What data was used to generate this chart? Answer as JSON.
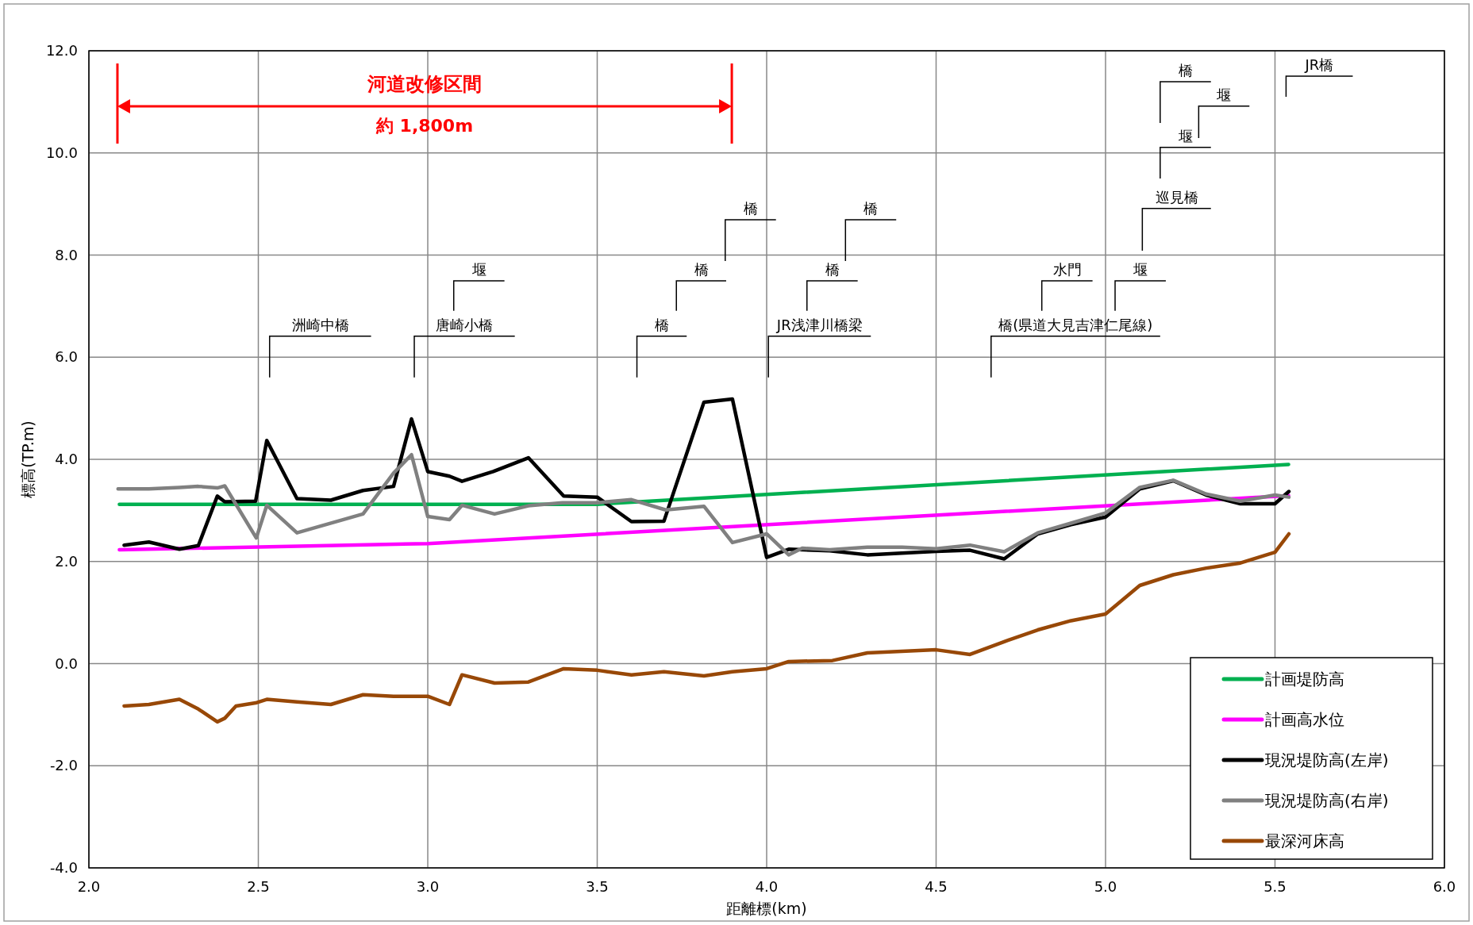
{
  "chart_data": {
    "type": "line",
    "xlabel": "距離標(km)",
    "ylabel": "標高(TP.m)",
    "xlim": [
      2.0,
      6.0
    ],
    "ylim": [
      -4.0,
      12.0
    ],
    "xticks": [
      {
        "value": 2.0,
        "label": "2.0"
      },
      {
        "value": 2.5,
        "label": "2.5"
      },
      {
        "value": 3.0,
        "label": "3.0"
      },
      {
        "value": 3.5,
        "label": "3.5"
      },
      {
        "value": 4.0,
        "label": "4.0"
      },
      {
        "value": 4.5,
        "label": "4.5"
      },
      {
        "value": 5.0,
        "label": "5.0"
      },
      {
        "value": 5.5,
        "label": "5.5"
      },
      {
        "value": 6.0,
        "label": "6.0"
      }
    ],
    "yticks": [
      {
        "value": -4.0,
        "label": "-4.0"
      },
      {
        "value": -2.0,
        "label": "-2.0"
      },
      {
        "value": 0.0,
        "label": "0.0"
      },
      {
        "value": 2.0,
        "label": "2.0"
      },
      {
        "value": 4.0,
        "label": "4.0"
      },
      {
        "value": 6.0,
        "label": "6.0"
      },
      {
        "value": 8.0,
        "label": "8.0"
      },
      {
        "value": 10.0,
        "label": "10.0"
      },
      {
        "value": 12.0,
        "label": "12.0"
      }
    ],
    "grid": true,
    "legend": "bottom right",
    "marker": "none",
    "line_style": "solid",
    "series": [
      {
        "name": "計画堤防高",
        "color": "#00b050",
        "x": [
          2.09,
          3.5,
          5.54
        ],
        "values": [
          3.12,
          3.12,
          3.9
        ]
      },
      {
        "name": "計画高水位",
        "color": "#ff00ff",
        "x": [
          2.09,
          3.0,
          5.54
        ],
        "values": [
          2.23,
          2.35,
          3.29
        ]
      },
      {
        "name": "現況堤防高(左岸)",
        "color": "#000000",
        "x": [
          2.104,
          2.177,
          2.267,
          2.323,
          2.379,
          2.401,
          2.492,
          2.525,
          2.614,
          2.714,
          2.809,
          2.899,
          2.952,
          3.0,
          3.064,
          3.101,
          3.193,
          3.297,
          3.401,
          3.5,
          3.601,
          3.697,
          3.815,
          3.899,
          4.0,
          4.065,
          4.186,
          4.297,
          4.5,
          4.6,
          4.701,
          4.8,
          4.898,
          5.0,
          5.101,
          5.2,
          5.297,
          5.398,
          5.5,
          5.541
        ],
        "values": [
          2.32,
          2.38,
          2.24,
          2.31,
          3.28,
          3.17,
          3.18,
          4.37,
          3.23,
          3.2,
          3.39,
          3.47,
          4.79,
          3.76,
          3.67,
          3.57,
          3.76,
          4.03,
          3.28,
          3.26,
          2.78,
          2.79,
          5.12,
          5.18,
          2.08,
          2.24,
          2.21,
          2.13,
          2.2,
          2.22,
          2.05,
          2.54,
          2.72,
          2.87,
          3.42,
          3.58,
          3.3,
          3.13,
          3.13,
          3.37
        ]
      },
      {
        "name": "現況堤防高(右岸)",
        "color": "#808080",
        "x": [
          2.086,
          2.177,
          2.267,
          2.323,
          2.379,
          2.401,
          2.494,
          2.525,
          2.614,
          2.809,
          2.899,
          2.952,
          3.0,
          3.064,
          3.101,
          3.197,
          3.297,
          3.397,
          3.5,
          3.601,
          3.702,
          3.815,
          3.899,
          4.0,
          4.065,
          4.105,
          4.186,
          4.297,
          4.4,
          4.5,
          4.6,
          4.701,
          4.8,
          4.898,
          5.0,
          5.101,
          5.2,
          5.297,
          5.398,
          5.5,
          5.541
        ],
        "values": [
          3.42,
          3.42,
          3.45,
          3.47,
          3.44,
          3.48,
          2.46,
          3.1,
          2.56,
          2.93,
          3.73,
          4.09,
          2.88,
          2.82,
          3.1,
          2.93,
          3.09,
          3.15,
          3.15,
          3.21,
          3.01,
          3.08,
          2.37,
          2.54,
          2.13,
          2.26,
          2.23,
          2.28,
          2.28,
          2.25,
          2.32,
          2.19,
          2.56,
          2.75,
          2.95,
          3.45,
          3.59,
          3.32,
          3.18,
          3.3,
          3.26
        ]
      },
      {
        "name": "最深河床高",
        "color": "#984807",
        "x": [
          2.104,
          2.177,
          2.267,
          2.323,
          2.379,
          2.401,
          2.434,
          2.492,
          2.525,
          2.614,
          2.714,
          2.809,
          2.899,
          3.0,
          3.064,
          3.101,
          3.197,
          3.297,
          3.401,
          3.5,
          3.601,
          3.697,
          3.815,
          3.899,
          4.0,
          4.065,
          4.194,
          4.297,
          4.5,
          4.6,
          4.701,
          4.8,
          4.898,
          5.0,
          5.101,
          5.2,
          5.297,
          5.398,
          5.5,
          5.541
        ],
        "values": [
          -0.83,
          -0.8,
          -0.7,
          -0.89,
          -1.14,
          -1.07,
          -0.83,
          -0.77,
          -0.7,
          -0.75,
          -0.8,
          -0.61,
          -0.64,
          -0.64,
          -0.8,
          -0.22,
          -0.38,
          -0.36,
          -0.1,
          -0.13,
          -0.22,
          -0.16,
          -0.24,
          -0.16,
          -0.1,
          0.04,
          0.06,
          0.21,
          0.27,
          0.18,
          0.43,
          0.66,
          0.84,
          0.97,
          1.53,
          1.74,
          1.87,
          1.97,
          2.18,
          2.54
        ]
      }
    ],
    "annotations": [
      "河道改修区間",
      "約 1,800m",
      "洲崎中橋",
      "唐崎小橋",
      "堰",
      "橋",
      "橋",
      "橋",
      "JR浅津川橋梁",
      "橋",
      "橋",
      "橋(県道大見吉津仁尾線)",
      "水門",
      "堰",
      "巡見橋",
      "堰",
      "堰",
      "橋",
      "JR橋"
    ]
  }
}
